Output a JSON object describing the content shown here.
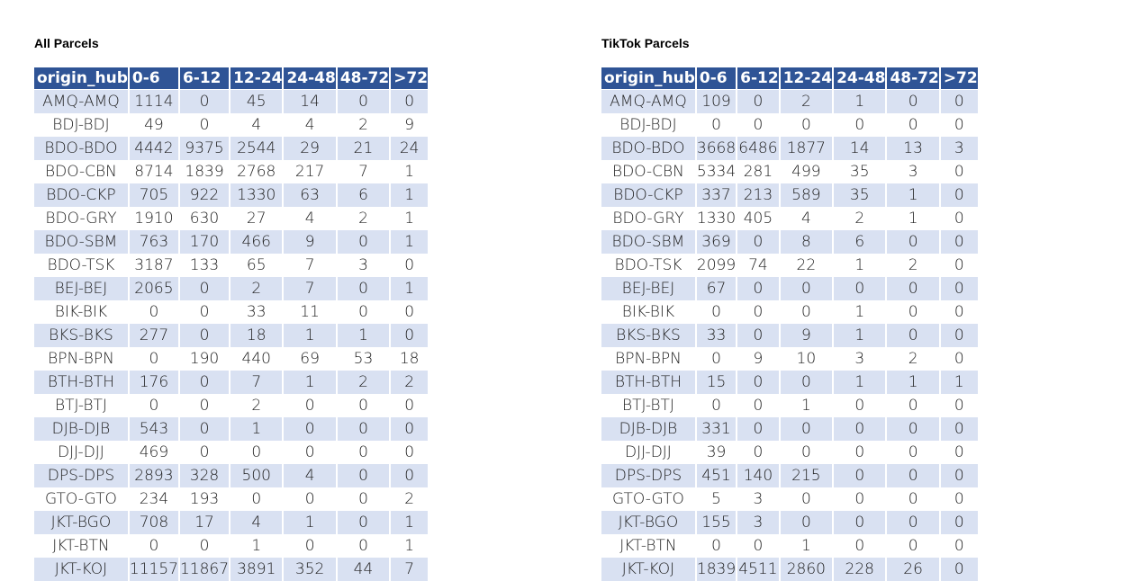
{
  "all_parcels": {
    "title": "All Parcels",
    "columns": [
      "origin_hub",
      "0-6",
      "6-12",
      "12-24",
      "24-48",
      "48-72",
      ">72"
    ],
    "rows": [
      [
        "AMQ-AMQ",
        "1114",
        "0",
        "45",
        "14",
        "0",
        "0"
      ],
      [
        "BDJ-BDJ",
        "49",
        "0",
        "4",
        "4",
        "2",
        "9"
      ],
      [
        "BDO-BDO",
        "4442",
        "9375",
        "2544",
        "29",
        "21",
        "24"
      ],
      [
        "BDO-CBN",
        "8714",
        "1839",
        "2768",
        "217",
        "7",
        "1"
      ],
      [
        "BDO-CKP",
        "705",
        "922",
        "1330",
        "63",
        "6",
        "1"
      ],
      [
        "BDO-GRY",
        "1910",
        "630",
        "27",
        "4",
        "2",
        "1"
      ],
      [
        "BDO-SBM",
        "763",
        "170",
        "466",
        "9",
        "0",
        "1"
      ],
      [
        "BDO-TSK",
        "3187",
        "133",
        "65",
        "7",
        "3",
        "0"
      ],
      [
        "BEJ-BEJ",
        "2065",
        "0",
        "2",
        "7",
        "0",
        "1"
      ],
      [
        "BIK-BIK",
        "0",
        "0",
        "33",
        "11",
        "0",
        "0"
      ],
      [
        "BKS-BKS",
        "277",
        "0",
        "18",
        "1",
        "1",
        "0"
      ],
      [
        "BPN-BPN",
        "0",
        "190",
        "440",
        "69",
        "53",
        "18"
      ],
      [
        "BTH-BTH",
        "176",
        "0",
        "7",
        "1",
        "2",
        "2"
      ],
      [
        "BTJ-BTJ",
        "0",
        "0",
        "2",
        "0",
        "0",
        "0"
      ],
      [
        "DJB-DJB",
        "543",
        "0",
        "1",
        "0",
        "0",
        "0"
      ],
      [
        "DJJ-DJJ",
        "469",
        "0",
        "0",
        "0",
        "0",
        "0"
      ],
      [
        "DPS-DPS",
        "2893",
        "328",
        "500",
        "4",
        "0",
        "0"
      ],
      [
        "GTO-GTO",
        "234",
        "193",
        "0",
        "0",
        "0",
        "2"
      ],
      [
        "JKT-BGO",
        "708",
        "17",
        "4",
        "1",
        "0",
        "1"
      ],
      [
        "JKT-BTN",
        "0",
        "0",
        "1",
        "0",
        "0",
        "1"
      ],
      [
        "JKT-KOJ",
        "11157",
        "11867",
        "3891",
        "352",
        "44",
        "7"
      ]
    ]
  },
  "tiktok_parcels": {
    "title": "TikTok Parcels",
    "columns": [
      "origin_hub",
      "0-6",
      "6-12",
      "12-24",
      "24-48",
      "48-72",
      ">72"
    ],
    "rows": [
      [
        "AMQ-AMQ",
        "109",
        "0",
        "2",
        "1",
        "0",
        "0"
      ],
      [
        "BDJ-BDJ",
        "0",
        "0",
        "0",
        "0",
        "0",
        "0"
      ],
      [
        "BDO-BDO",
        "3668",
        "6486",
        "1877",
        "14",
        "13",
        "3"
      ],
      [
        "BDO-CBN",
        "5334",
        "281",
        "499",
        "35",
        "3",
        "0"
      ],
      [
        "BDO-CKP",
        "337",
        "213",
        "589",
        "35",
        "1",
        "0"
      ],
      [
        "BDO-GRY",
        "1330",
        "405",
        "4",
        "2",
        "1",
        "0"
      ],
      [
        "BDO-SBM",
        "369",
        "0",
        "8",
        "6",
        "0",
        "0"
      ],
      [
        "BDO-TSK",
        "2099",
        "74",
        "22",
        "1",
        "2",
        "0"
      ],
      [
        "BEJ-BEJ",
        "67",
        "0",
        "0",
        "0",
        "0",
        "0"
      ],
      [
        "BIK-BIK",
        "0",
        "0",
        "0",
        "1",
        "0",
        "0"
      ],
      [
        "BKS-BKS",
        "33",
        "0",
        "9",
        "1",
        "0",
        "0"
      ],
      [
        "BPN-BPN",
        "0",
        "9",
        "10",
        "3",
        "2",
        "0"
      ],
      [
        "BTH-BTH",
        "15",
        "0",
        "0",
        "1",
        "1",
        "1"
      ],
      [
        "BTJ-BTJ",
        "0",
        "0",
        "1",
        "0",
        "0",
        "0"
      ],
      [
        "DJB-DJB",
        "331",
        "0",
        "0",
        "0",
        "0",
        "0"
      ],
      [
        "DJJ-DJJ",
        "39",
        "0",
        "0",
        "0",
        "0",
        "0"
      ],
      [
        "DPS-DPS",
        "451",
        "140",
        "215",
        "0",
        "0",
        "0"
      ],
      [
        "GTO-GTO",
        "5",
        "3",
        "0",
        "0",
        "0",
        "0"
      ],
      [
        "JKT-BGO",
        "155",
        "3",
        "0",
        "0",
        "0",
        "0"
      ],
      [
        "JKT-BTN",
        "0",
        "0",
        "1",
        "0",
        "0",
        "0"
      ],
      [
        "JKT-KOJ",
        "1839",
        "4511",
        "2860",
        "228",
        "26",
        "0"
      ]
    ]
  },
  "colors": {
    "header_bg": "#2f5496",
    "header_text": "#ffffff",
    "band_row_bg": "#d9e1f2",
    "plain_row_bg": "#ffffff"
  }
}
